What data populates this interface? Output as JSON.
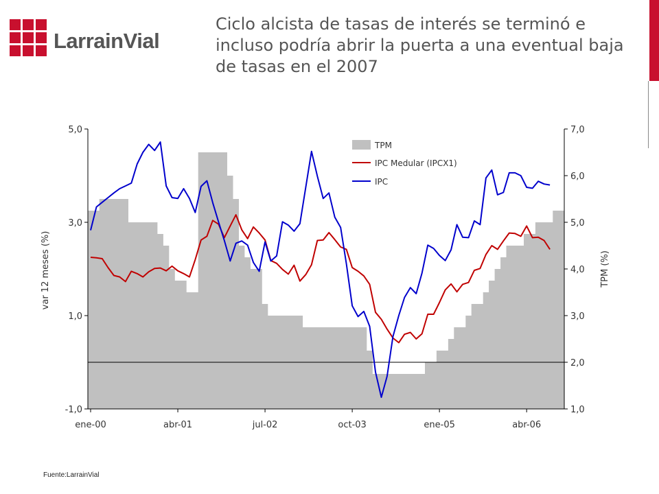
{
  "header": {
    "title": "Ciclo alcista de tasas de interés se terminó e incluso podría abrir la puerta a una eventual baja de tasas en el 2007",
    "logo_text": "LarrainVial",
    "accent_color": "#c8102e"
  },
  "footer": {
    "source": "Fuente:LarrainVial"
  },
  "chart_data": {
    "type": "line",
    "title": "",
    "xlabel": "",
    "ylabel": "var 12 meses (%)",
    "ylabel_right": "TPM (%)",
    "ylim": [
      -1.0,
      5.0
    ],
    "ylim_right": [
      1.0,
      7.0
    ],
    "yticks_labels": [
      "5,0",
      "3,0",
      "1,0",
      "-1,0"
    ],
    "yticks_right_labels": [
      "7,0",
      "6,0",
      "5,0",
      "4,0",
      "3,0",
      "2,0",
      "1,0"
    ],
    "xtick_labels": [
      "ene-00",
      "abr-01",
      "jul-02",
      "oct-03",
      "ene-05",
      "abr-06"
    ],
    "x_start": "ene-00",
    "n_months": 82,
    "grid": false,
    "legend_position": "top-center",
    "colors": {
      "TPM": "#c0c0c0",
      "IPC Medular (IPCX1)": "#c00000",
      "IPC": "#0000cc",
      "zero_line": "#000000"
    },
    "series": [
      {
        "name": "TPM",
        "type": "area",
        "axis": "right",
        "values": [
          5.25,
          5.25,
          5.5,
          5.5,
          5.5,
          5.5,
          5.5,
          5.0,
          5.0,
          5.0,
          5.0,
          5.0,
          4.75,
          4.5,
          4.0,
          3.75,
          3.75,
          3.5,
          3.5,
          6.5,
          6.5,
          6.5,
          6.5,
          6.5,
          6.0,
          5.5,
          4.5,
          4.25,
          4.0,
          4.0,
          3.25,
          3.0,
          3.0,
          3.0,
          3.0,
          3.0,
          3.0,
          2.75,
          2.75,
          2.75,
          2.75,
          2.75,
          2.75,
          2.75,
          2.75,
          2.75,
          2.75,
          2.75,
          2.25,
          1.75,
          1.75,
          1.75,
          1.75,
          1.75,
          1.75,
          1.75,
          1.75,
          1.75,
          2.0,
          2.0,
          2.25,
          2.25,
          2.5,
          2.75,
          2.75,
          3.0,
          3.25,
          3.25,
          3.5,
          3.75,
          4.0,
          4.25,
          4.5,
          4.5,
          4.5,
          4.75,
          4.75,
          5.0,
          5.0,
          5.0,
          5.25,
          5.25
        ]
      },
      {
        "name": "IPC Medular (IPCX1)",
        "type": "line",
        "axis": "left",
        "values": [
          2.25,
          2.24,
          2.22,
          2.03,
          1.86,
          1.83,
          1.73,
          1.95,
          1.9,
          1.83,
          1.94,
          2.01,
          2.02,
          1.96,
          2.06,
          1.96,
          1.9,
          1.83,
          2.2,
          2.62,
          2.7,
          3.04,
          2.96,
          2.67,
          2.92,
          3.16,
          2.84,
          2.65,
          2.9,
          2.77,
          2.62,
          2.18,
          2.12,
          1.99,
          1.89,
          2.08,
          1.74,
          1.88,
          2.09,
          2.61,
          2.62,
          2.78,
          2.63,
          2.47,
          2.42,
          2.03,
          1.95,
          1.85,
          1.67,
          1.07,
          0.92,
          0.71,
          0.52,
          0.42,
          0.6,
          0.64,
          0.5,
          0.61,
          1.03,
          1.03,
          1.28,
          1.55,
          1.68,
          1.51,
          1.67,
          1.71,
          1.97,
          2.01,
          2.31,
          2.5,
          2.42,
          2.6,
          2.77,
          2.76,
          2.7,
          2.92,
          2.67,
          2.68,
          2.61,
          2.42
        ]
      },
      {
        "name": "IPC",
        "type": "line",
        "axis": "left",
        "values": [
          2.83,
          3.33,
          3.43,
          3.53,
          3.63,
          3.72,
          3.78,
          3.84,
          4.25,
          4.5,
          4.67,
          4.54,
          4.72,
          3.78,
          3.53,
          3.51,
          3.72,
          3.51,
          3.21,
          3.77,
          3.89,
          3.42,
          3.01,
          2.61,
          2.17,
          2.55,
          2.6,
          2.51,
          2.14,
          1.95,
          2.58,
          2.17,
          2.28,
          3.01,
          2.94,
          2.81,
          2.97,
          3.75,
          4.52,
          3.99,
          3.51,
          3.63,
          3.11,
          2.89,
          2.11,
          1.21,
          0.98,
          1.09,
          0.77,
          -0.21,
          -0.75,
          -0.3,
          0.55,
          1.0,
          1.39,
          1.6,
          1.47,
          1.91,
          2.51,
          2.44,
          2.29,
          2.18,
          2.41,
          2.95,
          2.68,
          2.67,
          3.03,
          2.95,
          3.95,
          4.12,
          3.59,
          3.64,
          4.06,
          4.06,
          4.0,
          3.75,
          3.73,
          3.88,
          3.82,
          3.8
        ]
      }
    ]
  }
}
